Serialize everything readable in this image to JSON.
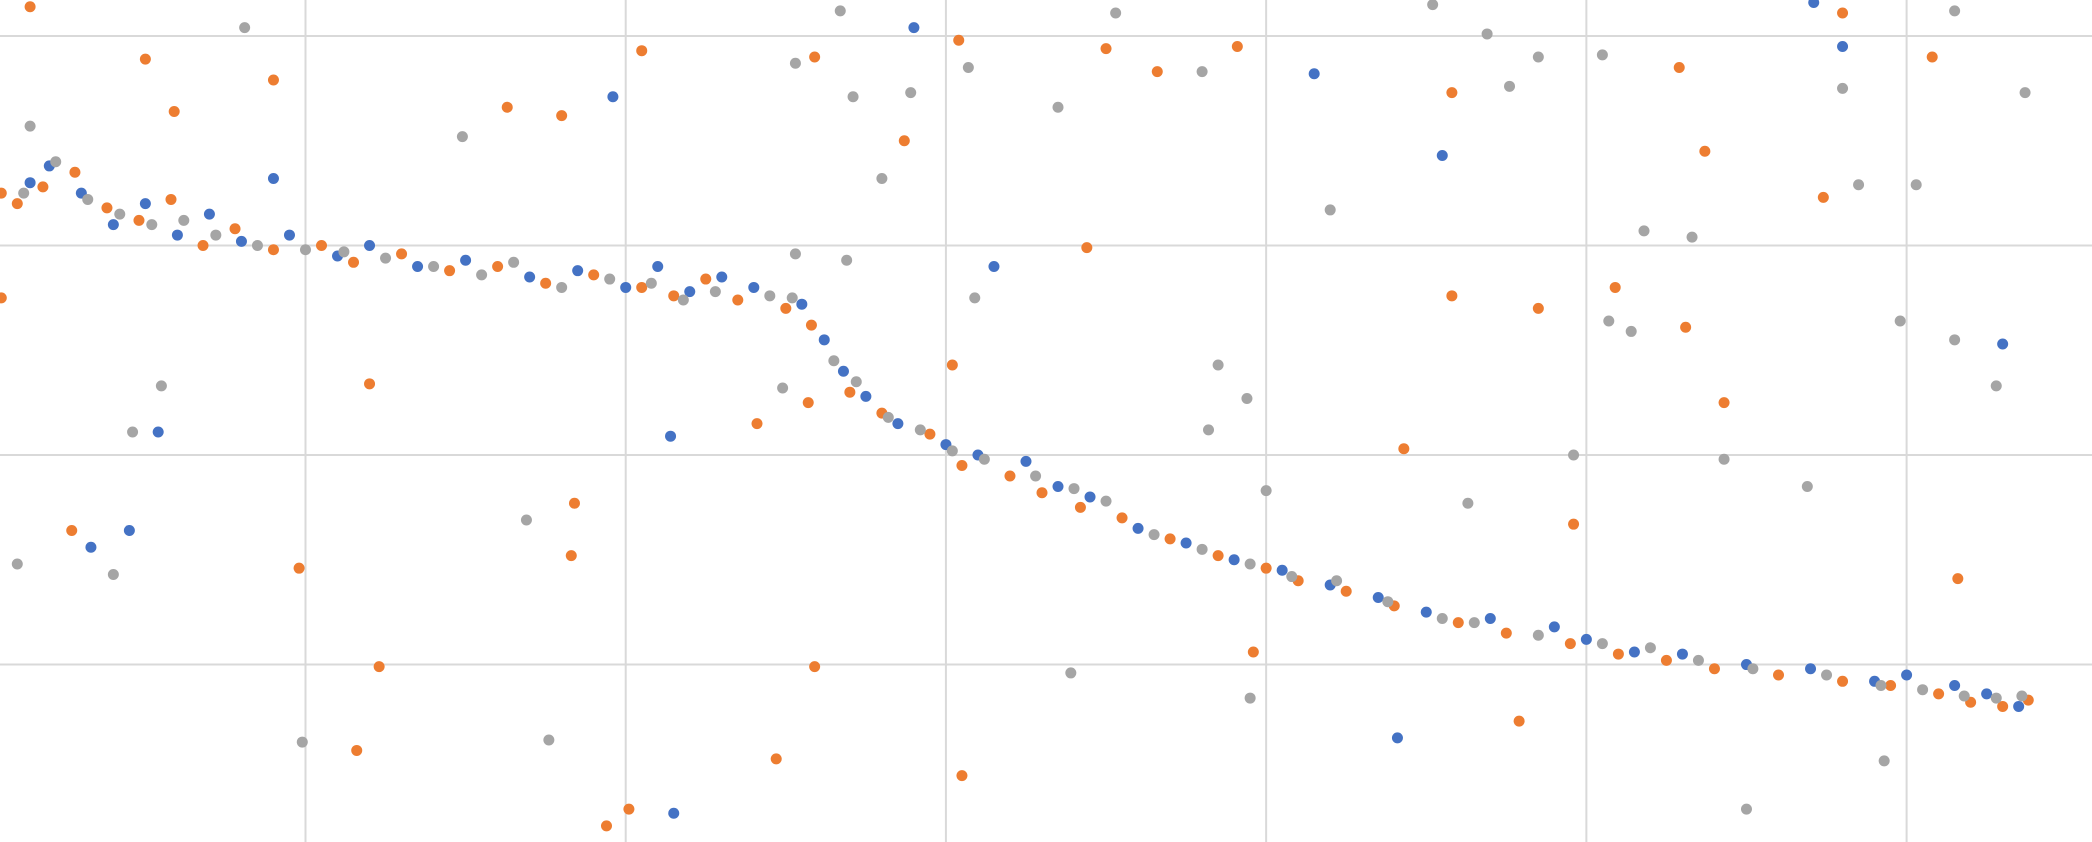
{
  "chart_data": {
    "type": "scatter",
    "xlim": [
      0.046,
      6.579
    ],
    "ylim": [
      0.153,
      4.172
    ],
    "xticks": [
      1,
      2,
      3,
      4,
      5,
      6
    ],
    "yticks": [
      1,
      2,
      3,
      4
    ],
    "grid": true,
    "series": [
      {
        "color": "#4472c4",
        "x": [
          0.14,
          0.2,
          0.3,
          0.4,
          0.5,
          0.6,
          0.7,
          0.8,
          0.95,
          1.1,
          1.2,
          1.35,
          1.5,
          1.7,
          1.85,
          2.0,
          2.1,
          2.2,
          2.3,
          2.4,
          2.55,
          2.62,
          2.68,
          2.75,
          2.85,
          3.0,
          3.1,
          3.25,
          3.35,
          3.45,
          3.6,
          3.75,
          3.9,
          4.05,
          4.2,
          4.35,
          4.5,
          4.7,
          4.9,
          5.0,
          5.15,
          5.3,
          5.5,
          5.7,
          5.9,
          6.0,
          6.15,
          6.25,
          6.35,
          2.9,
          1.96,
          3.15,
          4.15,
          4.55,
          2.14,
          0.54,
          0.33,
          0.45,
          4.41,
          2.15,
          6.3,
          5.8,
          5.71,
          0.9
        ],
        "values": [
          3.3,
          3.38,
          3.25,
          3.1,
          3.2,
          3.05,
          3.15,
          3.02,
          3.05,
          2.95,
          3.0,
          2.9,
          2.93,
          2.85,
          2.88,
          2.8,
          2.9,
          2.78,
          2.85,
          2.8,
          2.72,
          2.55,
          2.4,
          2.28,
          2.15,
          2.05,
          2.0,
          1.97,
          1.85,
          1.8,
          1.65,
          1.58,
          1.5,
          1.45,
          1.38,
          1.32,
          1.25,
          1.22,
          1.18,
          1.12,
          1.06,
          1.05,
          1.0,
          0.98,
          0.92,
          0.95,
          0.9,
          0.86,
          0.8,
          4.04,
          3.71,
          2.9,
          3.82,
          3.43,
          2.09,
          2.11,
          1.56,
          1.64,
          0.65,
          0.29,
          2.53,
          3.95,
          4.16,
          3.32
        ]
      },
      {
        "color": "#ed7d31",
        "x": [
          0.1,
          0.18,
          0.28,
          0.38,
          0.48,
          0.58,
          0.68,
          0.78,
          0.9,
          1.05,
          1.15,
          1.3,
          1.45,
          1.6,
          1.75,
          1.9,
          2.05,
          2.15,
          2.25,
          2.35,
          2.5,
          2.58,
          2.7,
          2.8,
          2.95,
          3.05,
          3.2,
          3.3,
          3.42,
          3.55,
          3.7,
          3.85,
          4.0,
          4.1,
          4.25,
          4.4,
          4.6,
          4.75,
          4.95,
          5.1,
          5.25,
          5.4,
          5.6,
          5.8,
          5.95,
          6.1,
          6.2,
          6.3,
          6.38,
          0.14,
          0.5,
          0.9,
          0.59,
          2.05,
          1.63,
          1.8,
          2.59,
          3.04,
          2.87,
          3.5,
          3.66,
          3.91,
          3.44,
          4.58,
          4.58,
          4.85,
          5.37,
          5.29,
          5.09,
          5.31,
          5.43,
          5.8,
          6.08,
          5.74,
          6.16,
          4.96,
          4.43,
          3.96,
          4.79,
          3.05,
          2.59,
          2.47,
          2.01,
          1.94,
          1.16,
          1.23,
          0.98,
          0.27,
          1.2,
          1.84,
          1.83,
          2.41,
          2.57,
          3.02,
          0.05,
          0.05
        ],
        "values": [
          3.2,
          3.28,
          3.35,
          3.18,
          3.12,
          3.22,
          3.0,
          3.08,
          2.98,
          3.0,
          2.92,
          2.96,
          2.88,
          2.9,
          2.82,
          2.86,
          2.8,
          2.76,
          2.84,
          2.74,
          2.7,
          2.62,
          2.3,
          2.2,
          2.1,
          1.95,
          1.9,
          1.82,
          1.75,
          1.7,
          1.6,
          1.52,
          1.46,
          1.4,
          1.35,
          1.28,
          1.2,
          1.15,
          1.1,
          1.05,
          1.02,
          0.98,
          0.95,
          0.92,
          0.9,
          0.86,
          0.82,
          0.8,
          0.83,
          4.14,
          3.89,
          3.79,
          3.64,
          3.93,
          3.66,
          3.62,
          3.9,
          3.98,
          3.5,
          3.94,
          3.83,
          3.95,
          2.99,
          3.73,
          2.76,
          2.7,
          3.45,
          3.85,
          2.8,
          2.61,
          2.25,
          4.11,
          3.9,
          3.23,
          1.41,
          1.67,
          2.03,
          1.06,
          0.73,
          0.47,
          0.99,
          0.55,
          0.31,
          0.23,
          0.59,
          0.99,
          1.46,
          1.64,
          2.34,
          1.77,
          1.52,
          2.15,
          2.25,
          2.43,
          2.75,
          3.25
        ]
      },
      {
        "color": "#a5a5a5",
        "x": [
          0.12,
          0.22,
          0.32,
          0.42,
          0.52,
          0.62,
          0.72,
          0.85,
          1.0,
          1.12,
          1.25,
          1.4,
          1.55,
          1.65,
          1.8,
          1.95,
          2.08,
          2.18,
          2.28,
          2.45,
          2.52,
          2.65,
          2.72,
          2.82,
          2.92,
          3.02,
          3.12,
          3.28,
          3.4,
          3.5,
          3.65,
          3.8,
          3.95,
          4.08,
          4.22,
          4.38,
          4.55,
          4.65,
          4.85,
          5.05,
          5.2,
          5.35,
          5.52,
          5.75,
          5.92,
          6.05,
          6.18,
          6.28,
          6.36,
          0.81,
          2.67,
          3.53,
          4.52,
          4.69,
          6.15,
          3.07,
          2.71,
          2.89,
          2.53,
          1.49,
          3.35,
          3.8,
          4.85,
          5.05,
          4.76,
          5.8,
          6.37,
          6.03,
          5.85,
          5.33,
          5.18,
          4.2,
          2.8,
          2.69,
          3.09,
          5.07,
          5.14,
          5.98,
          6.15,
          6.28,
          3.85,
          3.94,
          3.82,
          4.96,
          5.43,
          5.69,
          4.63,
          0.55,
          0.46,
          0.1,
          0.4,
          1.69,
          4.0,
          3.39,
          3.95,
          5.93,
          5.5,
          1.76,
          0.99,
          0.14,
          2.49,
          2.53
        ],
        "values": [
          3.25,
          3.4,
          3.22,
          3.15,
          3.1,
          3.12,
          3.05,
          3.0,
          2.98,
          2.97,
          2.94,
          2.9,
          2.86,
          2.92,
          2.8,
          2.84,
          2.82,
          2.74,
          2.78,
          2.76,
          2.75,
          2.45,
          2.35,
          2.18,
          2.12,
          2.02,
          1.98,
          1.9,
          1.84,
          1.78,
          1.62,
          1.55,
          1.48,
          1.42,
          1.4,
          1.3,
          1.22,
          1.2,
          1.14,
          1.1,
          1.08,
          1.02,
          0.98,
          0.95,
          0.9,
          0.88,
          0.85,
          0.84,
          0.85,
          4.04,
          4.12,
          4.11,
          4.15,
          4.01,
          4.12,
          3.85,
          3.71,
          3.73,
          3.87,
          3.52,
          3.66,
          3.83,
          3.9,
          3.91,
          3.76,
          3.75,
          3.73,
          3.29,
          3.29,
          3.04,
          3.07,
          3.17,
          3.32,
          2.93,
          2.75,
          2.64,
          2.59,
          2.64,
          2.55,
          2.33,
          2.43,
          2.27,
          2.12,
          2.0,
          1.98,
          1.85,
          1.77,
          2.33,
          2.11,
          1.48,
          1.43,
          1.69,
          1.83,
          0.96,
          0.84,
          0.54,
          0.31,
          0.64,
          0.63,
          3.57,
          2.32,
          2.96
        ]
      }
    ]
  }
}
